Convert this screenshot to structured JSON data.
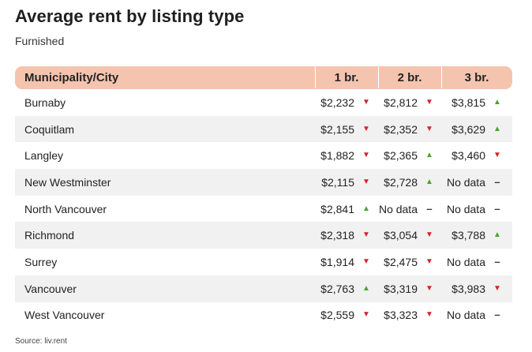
{
  "title": "Average rent by listing type",
  "subtitle": "Furnished",
  "source": "Source: liv.rent",
  "colors": {
    "header_bg": "#f5c4ae",
    "up": "#4aa52a",
    "down": "#d3232a",
    "row_shade": "#f1f1f1"
  },
  "chart_data": {
    "type": "table",
    "title": "Average rent by listing type",
    "subtitle": "Furnished",
    "columns": [
      "Municipality/City",
      "1 br.",
      "2 br.",
      "3 br."
    ],
    "rows": [
      {
        "city": "Burnaby",
        "cells": [
          {
            "value": "$2,232",
            "trend": "down"
          },
          {
            "value": "$2,812",
            "trend": "down"
          },
          {
            "value": "$3,815",
            "trend": "up"
          }
        ]
      },
      {
        "city": "Coquitlam",
        "cells": [
          {
            "value": "$2,155",
            "trend": "down"
          },
          {
            "value": "$2,352",
            "trend": "down"
          },
          {
            "value": "$3,629",
            "trend": "up"
          }
        ]
      },
      {
        "city": "Langley",
        "cells": [
          {
            "value": "$1,882",
            "trend": "down"
          },
          {
            "value": "$2,365",
            "trend": "up"
          },
          {
            "value": "$3,460",
            "trend": "down"
          }
        ]
      },
      {
        "city": "New Westminster",
        "cells": [
          {
            "value": "$2,115",
            "trend": "down"
          },
          {
            "value": "$2,728",
            "trend": "up"
          },
          {
            "value": "No data",
            "trend": "none"
          }
        ]
      },
      {
        "city": "North Vancouver",
        "cells": [
          {
            "value": "$2,841",
            "trend": "up"
          },
          {
            "value": "No data",
            "trend": "none"
          },
          {
            "value": "No data",
            "trend": "none"
          }
        ]
      },
      {
        "city": "Richmond",
        "cells": [
          {
            "value": "$2,318",
            "trend": "down"
          },
          {
            "value": "$3,054",
            "trend": "down"
          },
          {
            "value": "$3,788",
            "trend": "up"
          }
        ]
      },
      {
        "city": "Surrey",
        "cells": [
          {
            "value": "$1,914",
            "trend": "down"
          },
          {
            "value": "$2,475",
            "trend": "down"
          },
          {
            "value": "No data",
            "trend": "none"
          }
        ]
      },
      {
        "city": "Vancouver",
        "cells": [
          {
            "value": "$2,763",
            "trend": "up"
          },
          {
            "value": "$3,319",
            "trend": "down"
          },
          {
            "value": "$3,983",
            "trend": "down"
          }
        ]
      },
      {
        "city": "West Vancouver",
        "cells": [
          {
            "value": "$2,559",
            "trend": "down"
          },
          {
            "value": "$3,323",
            "trend": "down"
          },
          {
            "value": "No data",
            "trend": "none"
          }
        ]
      }
    ]
  }
}
